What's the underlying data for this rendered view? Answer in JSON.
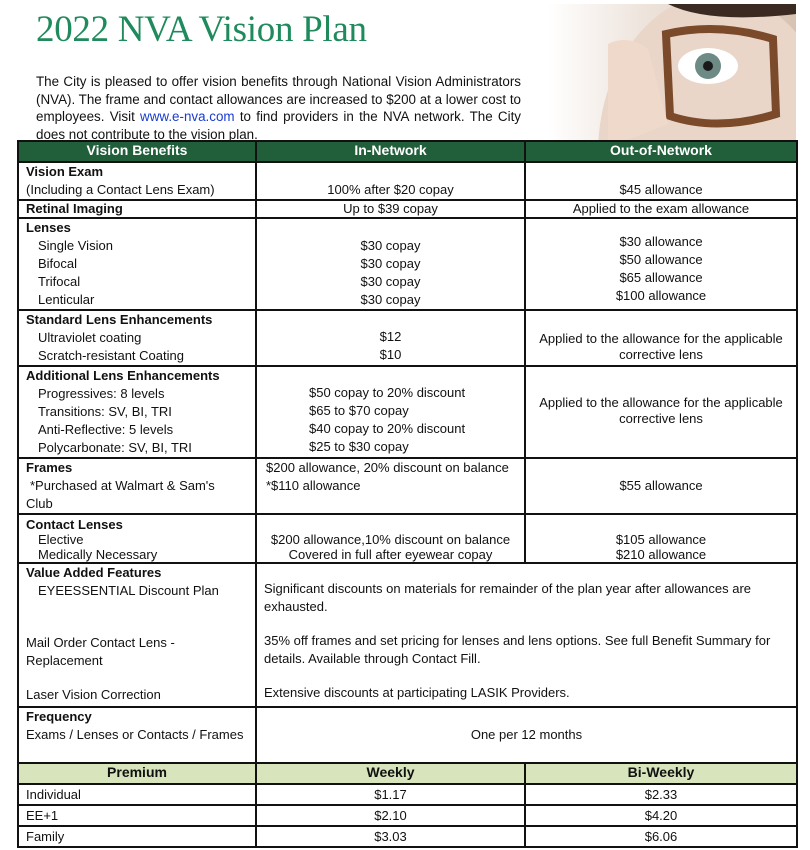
{
  "title": "2022 NVA Vision Plan",
  "intro": {
    "before": "The City is pleased to offer vision benefits through National Vision Administrators (NVA). The frame and contact allowances are increased to $200 at a lower cost to employees. Visit ",
    "link": "www.e-nva.com",
    "after": " to find providers in the NVA network. The City does not contribute to the vision plan."
  },
  "headers": [
    "Vision Benefits",
    "In-Network",
    "Out-of-Network"
  ],
  "rows": {
    "exam": {
      "title": "Vision Exam",
      "sub": "(Including a Contact Lens Exam)",
      "in": "100% after $20 copay",
      "out": "$45 allowance"
    },
    "retinal": {
      "title": "Retinal Imaging",
      "in": "Up to $39 copay",
      "out": "Applied to the exam allowance"
    },
    "lenses": {
      "title": "Lenses",
      "items": [
        "Single Vision",
        "Bifocal",
        "Trifocal",
        "Lenticular"
      ],
      "in": [
        "$30 copay",
        "$30 copay",
        "$30 copay",
        "$30 copay"
      ],
      "out": [
        "$30 allowance",
        "$50 allowance",
        "$65 allowance",
        "$100 allowance"
      ]
    },
    "standard": {
      "title": "Standard Lens Enhancements",
      "items": [
        "Ultraviolet coating",
        "Scratch-resistant Coating"
      ],
      "in": [
        "$12",
        "$10"
      ],
      "out": [
        "Applied to the allowance for the applicable",
        "corrective lens"
      ]
    },
    "additional": {
      "title": "Additional Lens Enhancements",
      "items": [
        "Progressives: 8 levels",
        "Transitions: SV, BI, TRI",
        "Anti-Reflective:  5 levels",
        "Polycarbonate: SV, BI, TRI"
      ],
      "in": [
        "$50 copay to 20% discount",
        "$65 to $70 copay",
        "$40 copay to 20% discount",
        "$25 to $30 copay"
      ],
      "out": [
        "Applied to the allowance for the applicable",
        "corrective lens"
      ]
    },
    "frames": {
      "title": "Frames",
      "items": [
        "*Purchased at Walmart & Sam's",
        "Club"
      ],
      "in": [
        "$200 allowance, 20% discount on balance",
        "*$110 allowance"
      ],
      "out": "$55 allowance"
    },
    "contacts": {
      "title": "Contact Lenses",
      "items": [
        "Elective",
        "Medically Necessary"
      ],
      "in": [
        "$200 allowance,10% discount on balance",
        "Covered in full after eyewear copay"
      ],
      "out": [
        "$105 allowance",
        "$210 allowance"
      ]
    },
    "value": {
      "title": "Value Added Features",
      "items": [
        {
          "label": "EYEESSENTIAL Discount Plan",
          "desc": "Significant discounts on materials for remainder of the plan year after allowances are exhausted."
        },
        {
          "label": "Mail Order Contact Lens - Replacement",
          "desc": "35% off frames and set pricing for lenses and lens options. See full Benefit Summary for details. Available through Contact Fill."
        },
        {
          "label": "Laser Vision Correction",
          "desc": "Extensive discounts at participating LASIK Providers."
        }
      ]
    },
    "frequency": {
      "title": "Frequency",
      "sub": "Exams / Lenses or Contacts / Frames",
      "value": "One per 12 months"
    }
  },
  "premium": {
    "headers": [
      "Premium",
      "Weekly",
      "Bi-Weekly"
    ],
    "rows": [
      [
        "Individual",
        "$1.17",
        "$2.33"
      ],
      [
        "EE+1",
        "$2.10",
        "$4.20"
      ],
      [
        "Family",
        "$3.03",
        "$6.06"
      ]
    ]
  },
  "colors": {
    "title": "#1f8a5c",
    "header": "#215e3a",
    "premium_header": "#d7e4bc",
    "link": "#1a3ccc"
  }
}
